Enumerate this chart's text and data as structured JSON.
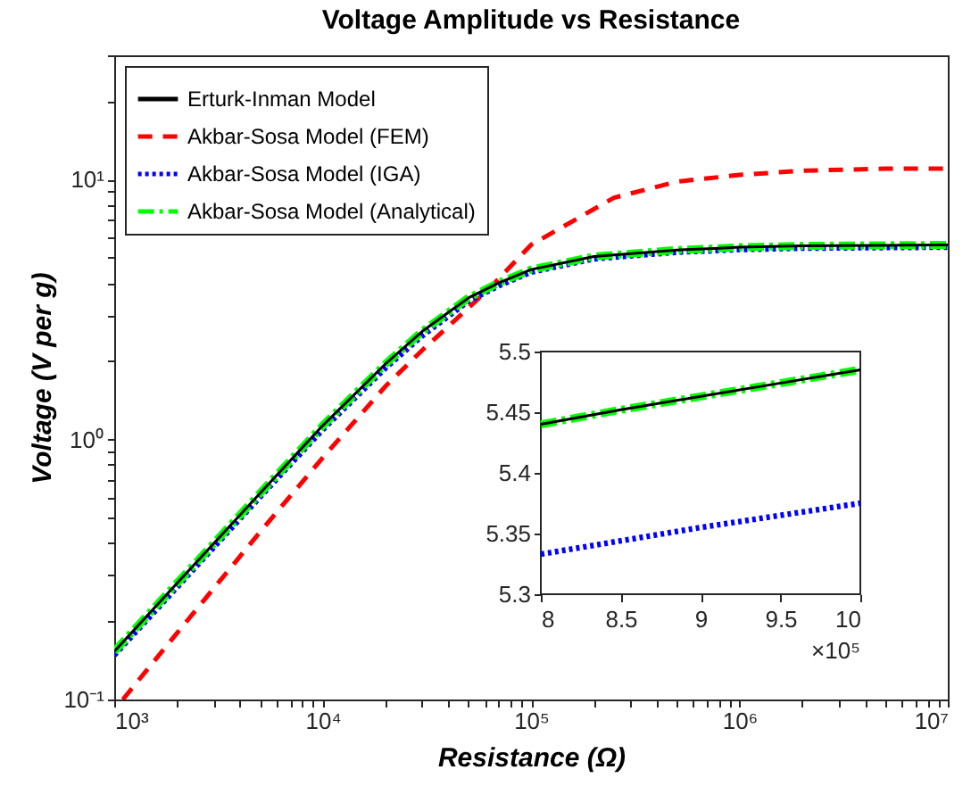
{
  "chart_data": [
    {
      "type": "line",
      "title": "Voltage Amplitude vs Resistance",
      "xlabel": "Resistance (Ω)",
      "ylabel": "Voltage (V per g)",
      "log": "xy",
      "grid": false,
      "legend": "top left",
      "xlim": [
        1000,
        10000000
      ],
      "ylim": [
        0.1,
        30
      ],
      "xticks": [
        {
          "value": 1000,
          "label": "10³"
        },
        {
          "value": 2000,
          "label": null
        },
        {
          "value": 3000,
          "label": null
        },
        {
          "value": 4000,
          "label": null
        },
        {
          "value": 5000,
          "label": null
        },
        {
          "value": 6000,
          "label": null
        },
        {
          "value": 7000,
          "label": null
        },
        {
          "value": 8000,
          "label": null
        },
        {
          "value": 9000,
          "label": null
        },
        {
          "value": 10000,
          "label": "10⁴"
        },
        {
          "value": 20000,
          "label": null
        },
        {
          "value": 30000,
          "label": null
        },
        {
          "value": 40000,
          "label": null
        },
        {
          "value": 50000,
          "label": null
        },
        {
          "value": 60000,
          "label": null
        },
        {
          "value": 70000,
          "label": null
        },
        {
          "value": 80000,
          "label": null
        },
        {
          "value": 90000,
          "label": null
        },
        {
          "value": 100000,
          "label": "10⁵"
        },
        {
          "value": 200000,
          "label": null
        },
        {
          "value": 300000,
          "label": null
        },
        {
          "value": 400000,
          "label": null
        },
        {
          "value": 500000,
          "label": null
        },
        {
          "value": 600000,
          "label": null
        },
        {
          "value": 700000,
          "label": null
        },
        {
          "value": 800000,
          "label": null
        },
        {
          "value": 900000,
          "label": null
        },
        {
          "value": 1000000,
          "label": "10⁶"
        },
        {
          "value": 2000000,
          "label": null
        },
        {
          "value": 3000000,
          "label": null
        },
        {
          "value": 4000000,
          "label": null
        },
        {
          "value": 5000000,
          "label": null
        },
        {
          "value": 6000000,
          "label": null
        },
        {
          "value": 7000000,
          "label": null
        },
        {
          "value": 8000000,
          "label": null
        },
        {
          "value": 9000000,
          "label": null
        },
        {
          "value": 10000000,
          "label": "10⁷"
        }
      ],
      "yticks": [
        {
          "value": 0.1,
          "label": "10⁻¹"
        },
        {
          "value": 0.2,
          "label": null
        },
        {
          "value": 0.3,
          "label": null
        },
        {
          "value": 0.4,
          "label": null
        },
        {
          "value": 0.5,
          "label": null
        },
        {
          "value": 0.6,
          "label": null
        },
        {
          "value": 0.7,
          "label": null
        },
        {
          "value": 0.8,
          "label": null
        },
        {
          "value": 0.9,
          "label": null
        },
        {
          "value": 1,
          "label": "10⁰"
        },
        {
          "value": 2,
          "label": null
        },
        {
          "value": 3,
          "label": null
        },
        {
          "value": 4,
          "label": null
        },
        {
          "value": 5,
          "label": null
        },
        {
          "value": 6,
          "label": null
        },
        {
          "value": 7,
          "label": null
        },
        {
          "value": 8,
          "label": null
        },
        {
          "value": 9,
          "label": null
        },
        {
          "value": 10,
          "label": "10¹"
        },
        {
          "value": 20,
          "label": null
        },
        {
          "value": 30,
          "label": null
        }
      ],
      "x": [
        1000,
        2000,
        5000,
        10000,
        20000,
        30000,
        50000,
        70000,
        100000,
        200000,
        500000,
        800000,
        1000000,
        2000000,
        5000000,
        10000000
      ],
      "series": [
        {
          "name": "Erturk-Inman Model",
          "color": "#000000",
          "line_style": "solid",
          "values": [
            0.153,
            0.28,
            0.62,
            1.13,
            1.95,
            2.6,
            3.5,
            4.0,
            4.5,
            5.05,
            5.35,
            5.44,
            5.485,
            5.55,
            5.58,
            5.6
          ]
        },
        {
          "name": "Akbar-Sosa Model (FEM)",
          "color": "#ff0000",
          "line_style": "dashed",
          "x": [
            1100,
            2000,
            5000,
            10000,
            20000,
            30000,
            50000,
            65000,
            100000,
            250000,
            500000,
            1000000,
            2000000,
            5000000,
            10000000
          ],
          "values": [
            0.1,
            0.18,
            0.44,
            0.85,
            1.6,
            2.2,
            3.2,
            3.9,
            5.6,
            8.5,
            9.8,
            10.4,
            10.8,
            11.0,
            11.0
          ]
        },
        {
          "name": "Akbar-Sosa Model (IGA)",
          "color": "#0000ff",
          "line_style": "dotted",
          "values": [
            0.148,
            0.27,
            0.6,
            1.09,
            1.88,
            2.5,
            3.4,
            3.9,
            4.4,
            4.95,
            5.25,
            5.33,
            5.375,
            5.44,
            5.47,
            5.49
          ]
        },
        {
          "name": "Akbar-Sosa Model (Analytical)",
          "color": "#00ff00",
          "line_style": "dashdot",
          "values": [
            0.153,
            0.28,
            0.62,
            1.13,
            1.95,
            2.6,
            3.5,
            4.0,
            4.5,
            5.05,
            5.35,
            5.44,
            5.485,
            5.55,
            5.58,
            5.6
          ]
        }
      ]
    },
    {
      "type": "line",
      "grid": false,
      "legend": false,
      "xlim": [
        8,
        10
      ],
      "ylim": [
        5.3,
        5.5
      ],
      "xticks": [
        8,
        8.5,
        9,
        9.5,
        10
      ],
      "yticks": [
        5.3,
        5.35,
        5.4,
        5.45,
        5.5
      ],
      "annotations": [
        "×10⁵"
      ],
      "x": [
        8,
        8.5,
        9,
        9.5,
        10
      ],
      "series": [
        {
          "color": "#000000",
          "line_style": "solid",
          "values": [
            5.44,
            5.452,
            5.463,
            5.474,
            5.485
          ]
        },
        {
          "color": "#0000ff",
          "line_style": "dotted",
          "values": [
            5.333,
            5.344,
            5.355,
            5.365,
            5.375
          ]
        },
        {
          "color": "#00ff00",
          "line_style": "dashdot",
          "values": [
            5.44,
            5.452,
            5.463,
            5.474,
            5.485
          ]
        }
      ]
    }
  ]
}
